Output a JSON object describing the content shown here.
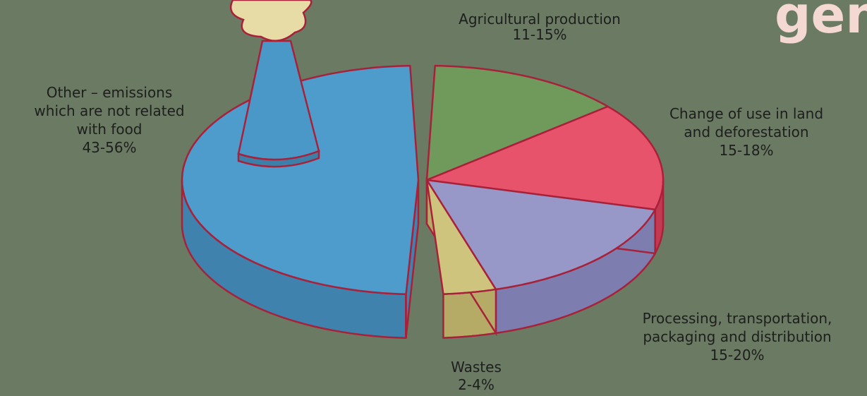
{
  "header": {
    "title_fragment": "gen"
  },
  "slices": [
    {
      "label_lines": [
        "Agricultural production"
      ],
      "range": "11-15%"
    },
    {
      "label_lines": [
        "Change of use in land",
        "and deforestation"
      ],
      "range": "15-18%"
    },
    {
      "label_lines": [
        "Processing, transportation,",
        "packaging and distribution"
      ],
      "range": "15-20%"
    },
    {
      "label_lines": [
        "Wastes"
      ],
      "range": "2-4%"
    },
    {
      "label_lines": [
        "Other – emissions",
        "which are not related",
        "with food"
      ],
      "range": "43-56%"
    }
  ]
}
